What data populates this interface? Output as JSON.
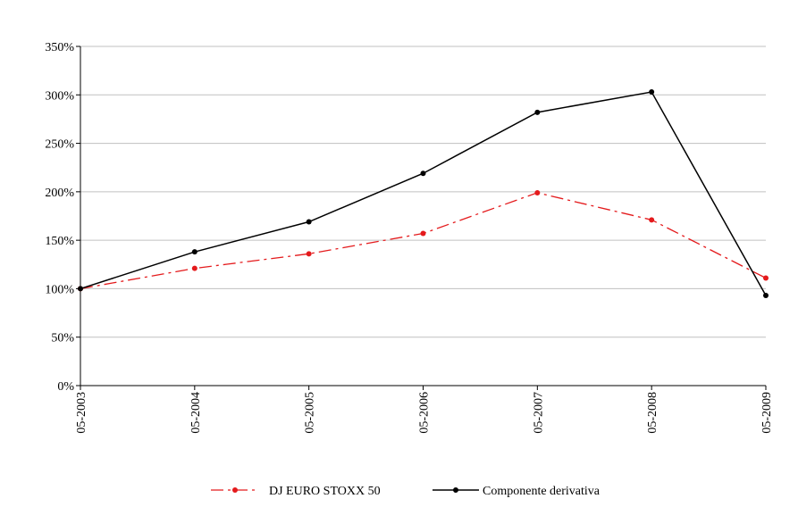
{
  "chart_data": {
    "type": "line",
    "x": [
      "05-2003",
      "05-2004",
      "05-2005",
      "05-2006",
      "05-2007",
      "05-2008",
      "05-2009"
    ],
    "y_ticks": [
      "0%",
      "50%",
      "100%",
      "150%",
      "200%",
      "250%",
      "300%",
      "350%"
    ],
    "ylim": [
      0,
      350
    ],
    "grid": true,
    "legend_position": "bottom",
    "series": [
      {
        "name": "DJ EURO STOXX 50",
        "values": [
          100,
          121,
          136,
          157,
          199,
          171,
          111
        ],
        "color": "#e41a1c",
        "style": "dash-dot"
      },
      {
        "name": "Componente derivativa",
        "values": [
          100,
          138,
          169,
          219,
          282,
          303,
          93
        ],
        "color": "#000000",
        "style": "solid"
      }
    ]
  }
}
